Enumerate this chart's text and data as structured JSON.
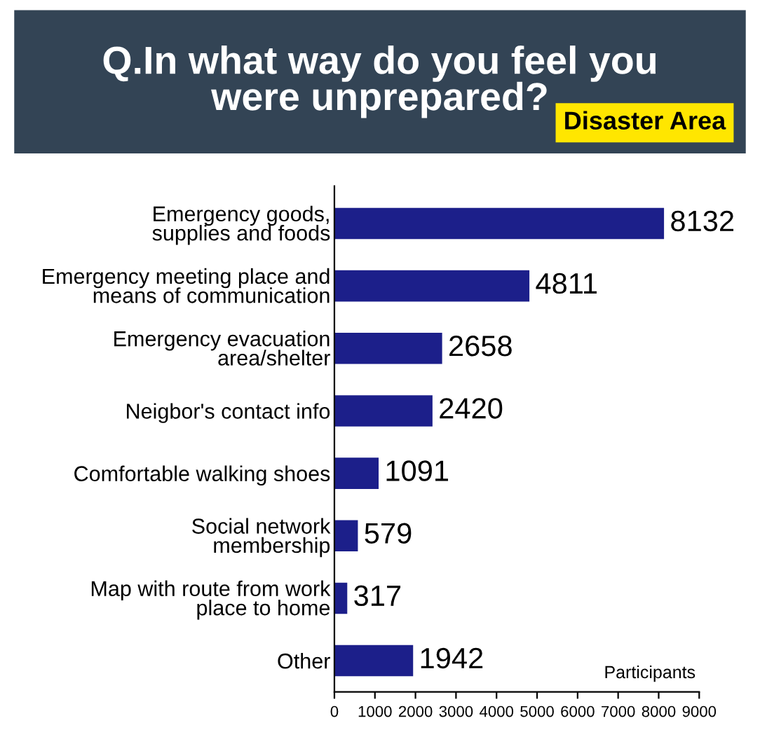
{
  "chart_data": {
    "type": "bar",
    "orientation": "horizontal",
    "title": "Q.In what way do you feel you\nwere unprepared?",
    "subtitle": "Disaster Area",
    "xlabel": "Participants",
    "categories": [
      "Emergency goods,\nsupplies and foods",
      "Emergency meeting place and\nmeans of communication",
      "Emergency evacuation\narea/shelter",
      "Neigbor's contact info",
      "Comfortable walking shoes",
      "Social network\nmembership",
      "Map with route from work\nplace to home",
      "Other"
    ],
    "values": [
      8132,
      4811,
      2658,
      2420,
      1091,
      579,
      317,
      1942
    ],
    "color": "#1c1f8a",
    "xlim": [
      0,
      9000
    ],
    "xticks": [
      0,
      1000,
      2000,
      3000,
      4000,
      5000,
      6000,
      7000,
      8000,
      9000
    ],
    "data_labels": true,
    "grid": false,
    "legend": false
  }
}
